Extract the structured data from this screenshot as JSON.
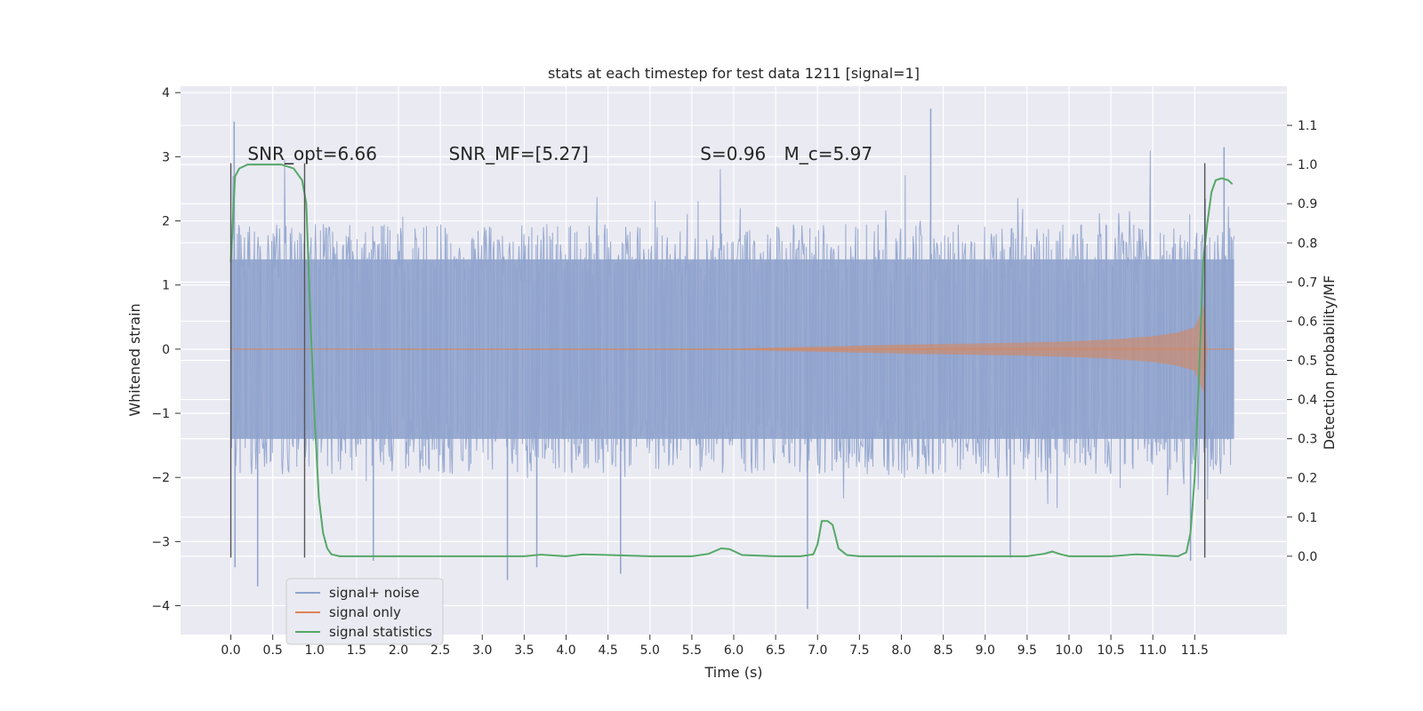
{
  "chart_data": {
    "type": "line",
    "title": "stats at each timestep for test data 1211 [signal=1]",
    "xlabel": "Time (s)",
    "ylabel_left": "Whitened strain",
    "ylabel_right": "Detection probability/MF",
    "xlim": [
      -0.6,
      12.6
    ],
    "ylim_left": [
      -4.45,
      4.1
    ],
    "ylim_right": [
      -0.2,
      1.2
    ],
    "x_ticks": [
      "0.0",
      "0.5",
      "1.0",
      "1.5",
      "2.0",
      "2.5",
      "3.0",
      "3.5",
      "4.0",
      "4.5",
      "5.0",
      "5.5",
      "6.0",
      "6.5",
      "7.0",
      "7.5",
      "8.0",
      "8.5",
      "9.0",
      "9.5",
      "10.0",
      "10.5",
      "11.0",
      "11.5"
    ],
    "y_ticks_left": [
      "−4",
      "−3",
      "−2",
      "−1",
      "0",
      "1",
      "2",
      "3",
      "4"
    ],
    "y_ticks_right": [
      "0.0",
      "0.1",
      "0.2",
      "0.3",
      "0.4",
      "0.5",
      "0.6",
      "0.7",
      "0.8",
      "0.9",
      "1.0",
      "1.1"
    ],
    "grid": true,
    "legend_position": "lower-left",
    "background_color": "#eaeaf2",
    "colors": {
      "noise": "#8fa3cd",
      "signal": "#dd8452",
      "stats": "#55a868",
      "vline": "#555555"
    },
    "annotations": [
      {
        "text": "SNR_opt=6.66",
        "x": 0.2
      },
      {
        "text": "SNR_MF=[5.27]",
        "x": 2.6
      },
      {
        "text": "S=0.96",
        "x": 5.6
      },
      {
        "text": "M_c=5.97",
        "x": 6.6
      }
    ],
    "vertical_lines": [
      0.0,
      0.88,
      11.62
    ],
    "series": [
      {
        "name": "signal+ noise",
        "x_range": [
          0.0,
          11.97
        ],
        "typical_envelope": [
          -1.4,
          1.4
        ],
        "notable_peaks": [
          {
            "x": 0.04,
            "y": 3.55
          },
          {
            "x": 0.05,
            "y": -3.4
          },
          {
            "x": 0.32,
            "y": -3.7
          },
          {
            "x": 1.7,
            "y": -3.3
          },
          {
            "x": 3.3,
            "y": -3.6
          },
          {
            "x": 3.65,
            "y": -3.4
          },
          {
            "x": 4.65,
            "y": -3.5
          },
          {
            "x": 6.88,
            "y": -4.05
          },
          {
            "x": 8.35,
            "y": 3.75
          },
          {
            "x": 11.85,
            "y": 3.15
          },
          {
            "x": 9.3,
            "y": -3.25
          },
          {
            "x": 11.45,
            "y": -3.3
          }
        ]
      },
      {
        "name": "signal only",
        "x": [
          0.0,
          6.0,
          7.0,
          8.0,
          9.0,
          10.0,
          10.5,
          11.0,
          11.3,
          11.5,
          11.62,
          11.65,
          11.97
        ],
        "amplitude": [
          0.0,
          0.01,
          0.04,
          0.07,
          0.09,
          0.12,
          0.15,
          0.2,
          0.26,
          0.34,
          0.72,
          0.0,
          0.0
        ]
      },
      {
        "name": "signal statistics",
        "x": [
          0.0,
          0.05,
          0.1,
          0.2,
          0.4,
          0.6,
          0.75,
          0.85,
          0.9,
          0.95,
          1.0,
          1.05,
          1.1,
          1.15,
          1.2,
          1.3,
          1.5,
          2.0,
          3.0,
          3.5,
          3.7,
          4.0,
          4.2,
          4.5,
          5.0,
          5.5,
          5.7,
          5.85,
          5.95,
          6.1,
          6.5,
          6.8,
          6.95,
          7.0,
          7.05,
          7.12,
          7.18,
          7.25,
          7.35,
          7.5,
          8.0,
          9.0,
          9.5,
          9.7,
          9.8,
          9.9,
          10.0,
          10.5,
          10.8,
          11.0,
          11.3,
          11.4,
          11.45,
          11.5,
          11.55,
          11.6,
          11.65,
          11.7,
          11.75,
          11.82,
          11.9,
          11.95
        ],
        "y": [
          0.75,
          0.97,
          0.99,
          1.0,
          1.0,
          1.0,
          0.99,
          0.96,
          0.9,
          0.6,
          0.35,
          0.15,
          0.06,
          0.02,
          0.005,
          0.0,
          0.0,
          0.0,
          0.0,
          0.0,
          0.004,
          0.0,
          0.005,
          0.003,
          0.0,
          0.0,
          0.006,
          0.02,
          0.018,
          0.003,
          0.0,
          0.0,
          0.005,
          0.03,
          0.09,
          0.09,
          0.08,
          0.02,
          0.003,
          0.0,
          0.0,
          0.0,
          0.0,
          0.006,
          0.012,
          0.005,
          0.0,
          0.0,
          0.005,
          0.003,
          0.0,
          0.01,
          0.06,
          0.2,
          0.45,
          0.75,
          0.85,
          0.93,
          0.96,
          0.965,
          0.96,
          0.95
        ]
      }
    ]
  }
}
